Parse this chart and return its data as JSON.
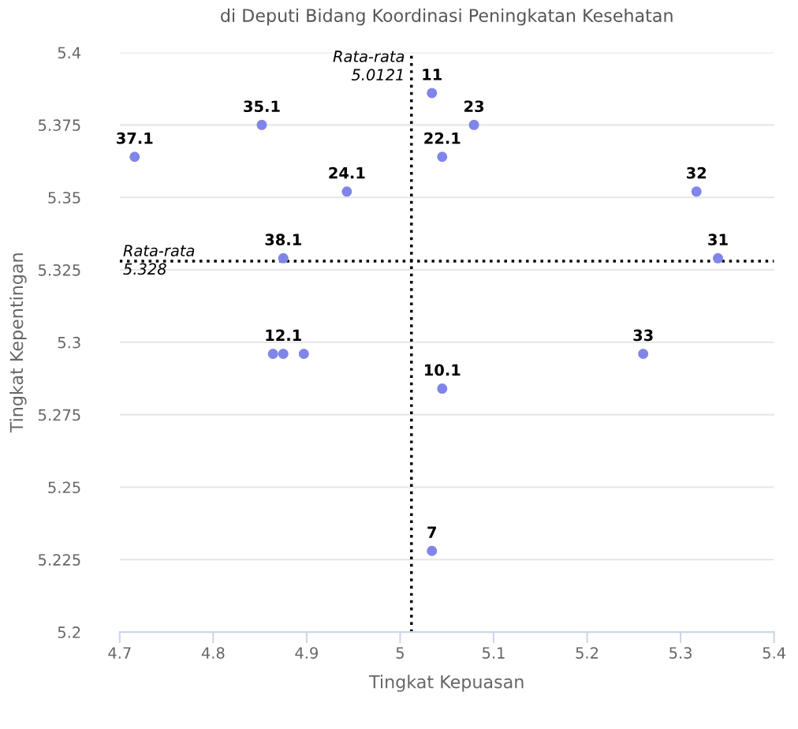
{
  "chart_data": {
    "type": "scatter",
    "title": "di Deputi Bidang Koordinasi Peningkatan Kesehatan",
    "xlabel": "Tingkat Kepuasan",
    "ylabel": "Tingkat Kepentingan",
    "series": [
      {
        "color": "#8085e9",
        "x": [
          4.716,
          4.852,
          4.943,
          5.034,
          5.079,
          5.045,
          5.317,
          4.875,
          5.34,
          4.864,
          4.875,
          4.897,
          5.26,
          5.045,
          5.034
        ],
        "values": [
          5.364,
          5.375,
          5.352,
          5.386,
          5.375,
          5.364,
          5.352,
          5.329,
          5.329,
          5.296,
          5.296,
          5.296,
          5.296,
          5.284,
          5.228
        ]
      }
    ],
    "annotations": [
      {
        "text": "37.1",
        "x": 4.716,
        "y": 5.364
      },
      {
        "text": "35.1",
        "x": 4.852,
        "y": 5.375
      },
      {
        "text": "24.1",
        "x": 4.943,
        "y": 5.352
      },
      {
        "text": "11",
        "x": 5.034,
        "y": 5.386
      },
      {
        "text": "23",
        "x": 5.079,
        "y": 5.375
      },
      {
        "text": "22.1",
        "x": 5.045,
        "y": 5.364
      },
      {
        "text": "32",
        "x": 5.317,
        "y": 5.352
      },
      {
        "text": "38.1",
        "x": 4.875,
        "y": 5.329
      },
      {
        "text": "31",
        "x": 5.34,
        "y": 5.329
      },
      {
        "text": "12.1",
        "x": 4.875,
        "y": 5.296
      },
      {
        "text": "33",
        "x": 5.26,
        "y": 5.296
      },
      {
        "text": "10.1",
        "x": 5.045,
        "y": 5.284
      },
      {
        "text": "7",
        "x": 5.034,
        "y": 5.228
      }
    ],
    "xlim": [
      4.7,
      5.4
    ],
    "xticks": [
      4.7,
      4.8,
      4.9,
      5,
      5.1,
      5.2,
      5.3,
      5.4
    ],
    "ylim": [
      5.2,
      5.4
    ],
    "yticks": [
      5.2,
      5.225,
      5.25,
      5.275,
      5.3,
      5.325,
      5.35,
      5.375,
      5.4
    ],
    "grid": "y",
    "marker": "circle",
    "ref_lines": [
      {
        "axis": "x",
        "value": 5.0121,
        "label": "Rata-rata\n5.0121",
        "color": "#000000",
        "line_style": "dotted"
      },
      {
        "axis": "y",
        "value": 5.328,
        "label": "Rata-rata\n5.328",
        "color": "#000000",
        "line_style": "dotted"
      }
    ]
  }
}
